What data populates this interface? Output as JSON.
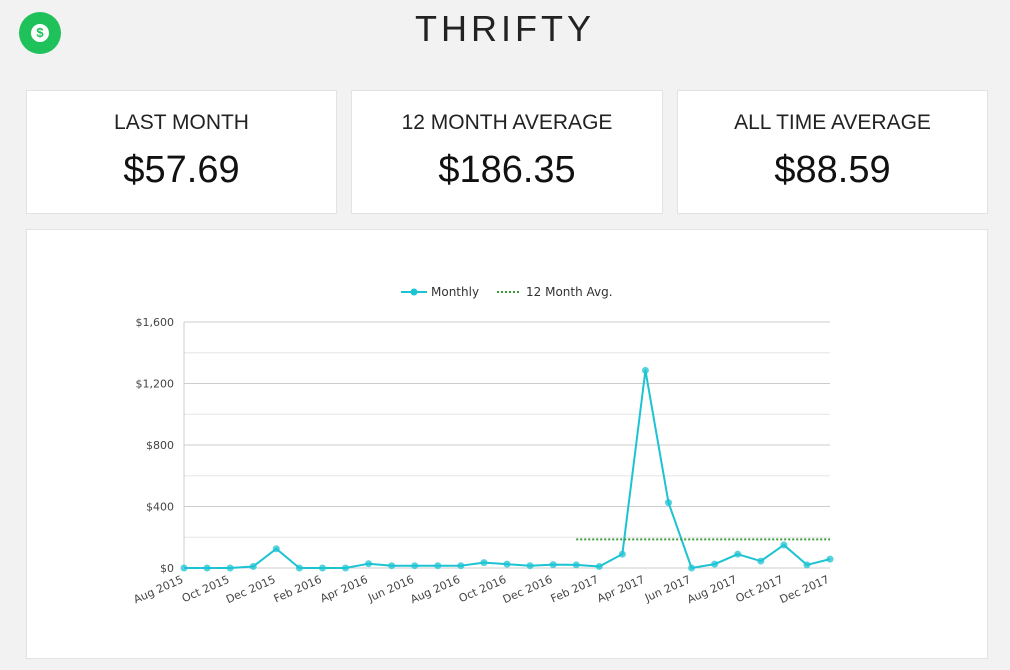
{
  "app": {
    "title": "THRIFTY",
    "logo_glyph": "$"
  },
  "stats": [
    {
      "label": "LAST MONTH",
      "value": "$57.69"
    },
    {
      "label": "12 MONTH AVERAGE",
      "value": "$186.35"
    },
    {
      "label": "ALL TIME AVERAGE",
      "value": "$88.59"
    }
  ],
  "colors": {
    "brand": "#1fc15b",
    "monthly": "#1cc3d3",
    "avg": "#3a9c3a"
  },
  "chart_data": {
    "type": "line",
    "title": "",
    "xlabel": "",
    "ylabel": "",
    "legend_position": "top-center",
    "grid": true,
    "ylim": [
      0,
      1600
    ],
    "yticks": [
      0,
      400,
      800,
      1200,
      1600
    ],
    "ytick_labels": [
      "$0",
      "$400",
      "$800",
      "$1,200",
      "$1,600"
    ],
    "x": [
      "Aug 2015",
      "Sep 2015",
      "Oct 2015",
      "Nov 2015",
      "Dec 2015",
      "Jan 2016",
      "Feb 2016",
      "Mar 2016",
      "Apr 2016",
      "May 2016",
      "Jun 2016",
      "Jul 2016",
      "Aug 2016",
      "Sep 2016",
      "Oct 2016",
      "Nov 2016",
      "Dec 2016",
      "Jan 2017",
      "Feb 2017",
      "Mar 2017",
      "Apr 2017",
      "May 2017",
      "Jun 2017",
      "Jul 2017",
      "Aug 2017",
      "Sep 2017",
      "Oct 2017",
      "Nov 2017",
      "Dec 2017"
    ],
    "xtick_labels": [
      "Aug 2015",
      "Oct 2015",
      "Dec 2015",
      "Feb 2016",
      "Apr 2016",
      "Jun 2016",
      "Aug 2016",
      "Oct 2016",
      "Dec 2016",
      "Feb 2017",
      "Apr 2017",
      "Jun 2017",
      "Aug 2017",
      "Oct 2017",
      "Dec 2017"
    ],
    "series": [
      {
        "name": "Monthly",
        "style": "solid",
        "values": [
          0,
          0,
          0,
          10,
          125,
          0,
          0,
          0,
          28,
          15,
          15,
          15,
          15,
          35,
          25,
          15,
          22,
          20,
          10,
          90,
          1285,
          425,
          0,
          25,
          90,
          45,
          150,
          20,
          57.69
        ]
      },
      {
        "name": "12 Month Avg.",
        "style": "dotted",
        "x_start": "Jan 2017",
        "x_end": "Dec 2017",
        "value": 186.35
      }
    ]
  }
}
